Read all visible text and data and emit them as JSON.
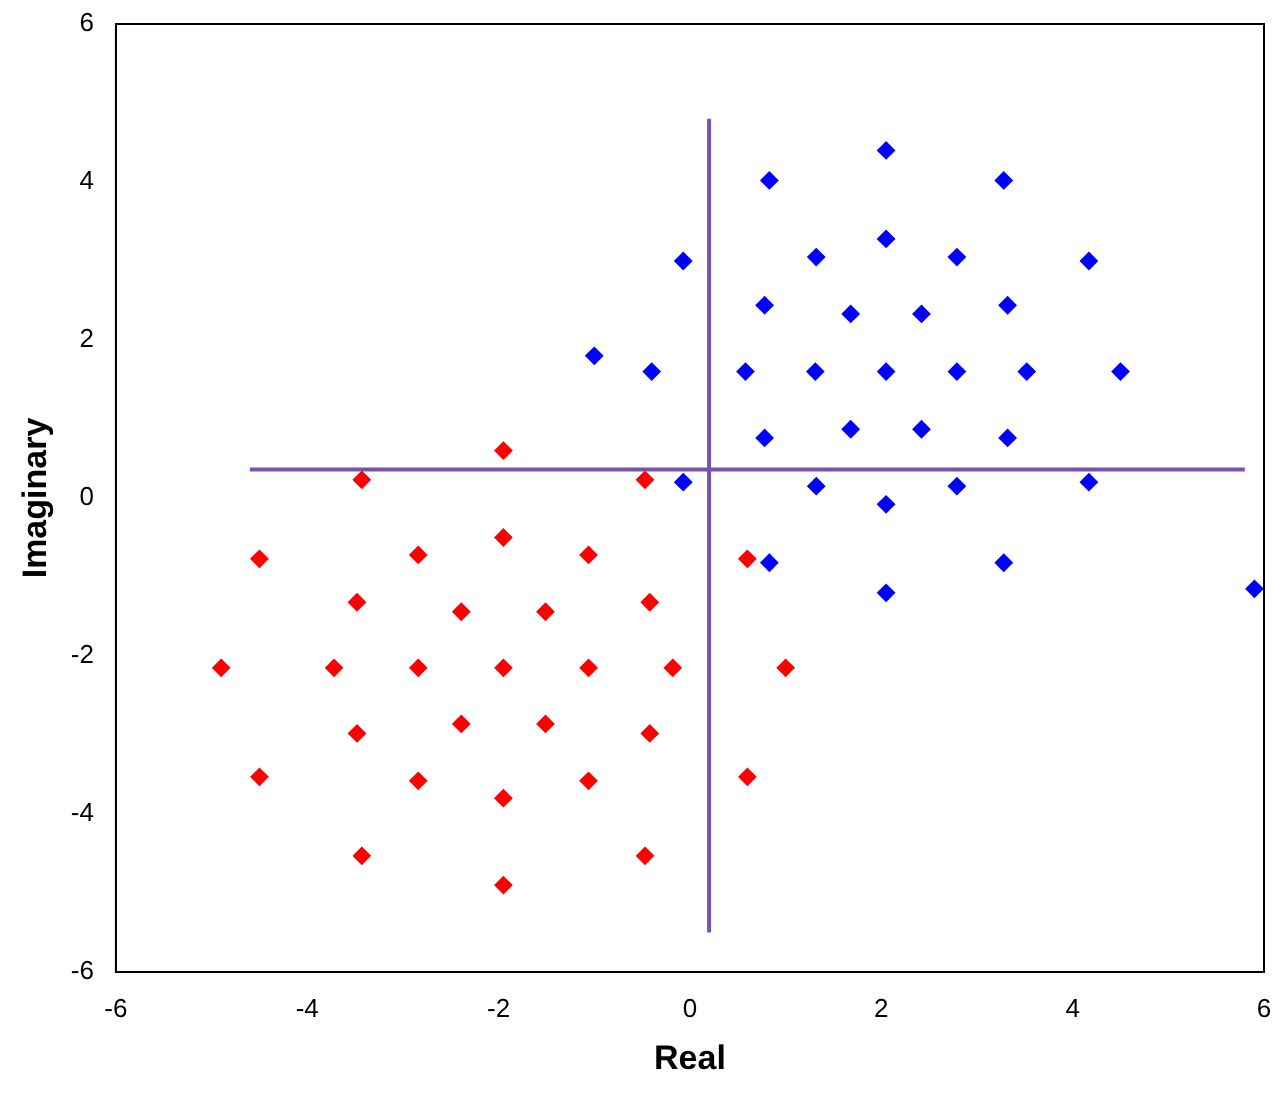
{
  "chart_data": {
    "type": "scatter",
    "xlabel": "Real",
    "ylabel": "Imaginary",
    "xlim": [
      -6,
      6
    ],
    "ylim": [
      -6,
      6
    ],
    "xticks": [
      -6,
      -4,
      -2,
      0,
      2,
      4,
      6
    ],
    "yticks": [
      -6,
      -4,
      -2,
      0,
      2,
      4,
      6
    ],
    "grid": false,
    "legend": false,
    "marker": "diamond",
    "series": [
      {
        "color": "#0000ff",
        "x": [
          4.5,
          4.17,
          3.28,
          2.05,
          0.83,
          -0.07,
          -0.4,
          -0.07,
          0.83,
          2.05,
          3.28,
          4.17,
          3.52,
          3.32,
          2.79,
          2.05,
          1.32,
          0.78,
          0.58,
          0.78,
          1.32,
          2.05,
          2.79,
          3.32,
          2.79,
          2.42,
          1.68,
          1.31,
          1.68,
          2.42,
          2.05,
          -1.0,
          5.9
        ],
        "values": [
          1.6,
          3.0,
          4.02,
          4.4,
          4.02,
          3.0,
          1.6,
          0.2,
          -0.82,
          -1.2,
          -0.82,
          0.2,
          1.6,
          2.44,
          3.05,
          3.28,
          3.05,
          2.44,
          1.6,
          0.76,
          0.15,
          -0.08,
          0.15,
          0.76,
          1.6,
          2.33,
          2.33,
          1.6,
          0.87,
          0.87,
          1.6,
          1.8,
          -1.15
        ]
      },
      {
        "color": "#ff0000",
        "x": [
          1.0,
          0.6,
          -0.47,
          -1.95,
          -3.43,
          -4.5,
          -4.9,
          -4.5,
          -3.43,
          -1.95,
          -0.47,
          0.6,
          -0.18,
          -0.42,
          -1.06,
          -1.95,
          -2.84,
          -3.48,
          -3.72,
          -3.48,
          -2.84,
          -1.95,
          -1.06,
          -0.42,
          -1.06,
          -1.51,
          -2.39,
          -2.84,
          -2.39,
          -1.51,
          -1.95
        ],
        "values": [
          -2.15,
          -0.77,
          0.23,
          0.6,
          0.23,
          -0.77,
          -2.15,
          -3.53,
          -4.53,
          -4.9,
          -4.53,
          -3.53,
          -2.15,
          -1.32,
          -0.72,
          -0.5,
          -0.72,
          -1.32,
          -2.15,
          -2.98,
          -3.58,
          -3.8,
          -3.58,
          -2.98,
          -2.15,
          -1.44,
          -1.44,
          -2.15,
          -2.86,
          -2.86,
          -2.15
        ]
      },
      {
        "type": "line",
        "color": "#7b52ab",
        "marker": "none",
        "x": [
          0.2,
          0.2
        ],
        "values": [
          -5.5,
          4.8
        ]
      },
      {
        "type": "line",
        "color": "#7b52ab",
        "marker": "none",
        "x": [
          -4.6,
          5.8
        ],
        "values": [
          0.36,
          0.36
        ]
      }
    ]
  }
}
